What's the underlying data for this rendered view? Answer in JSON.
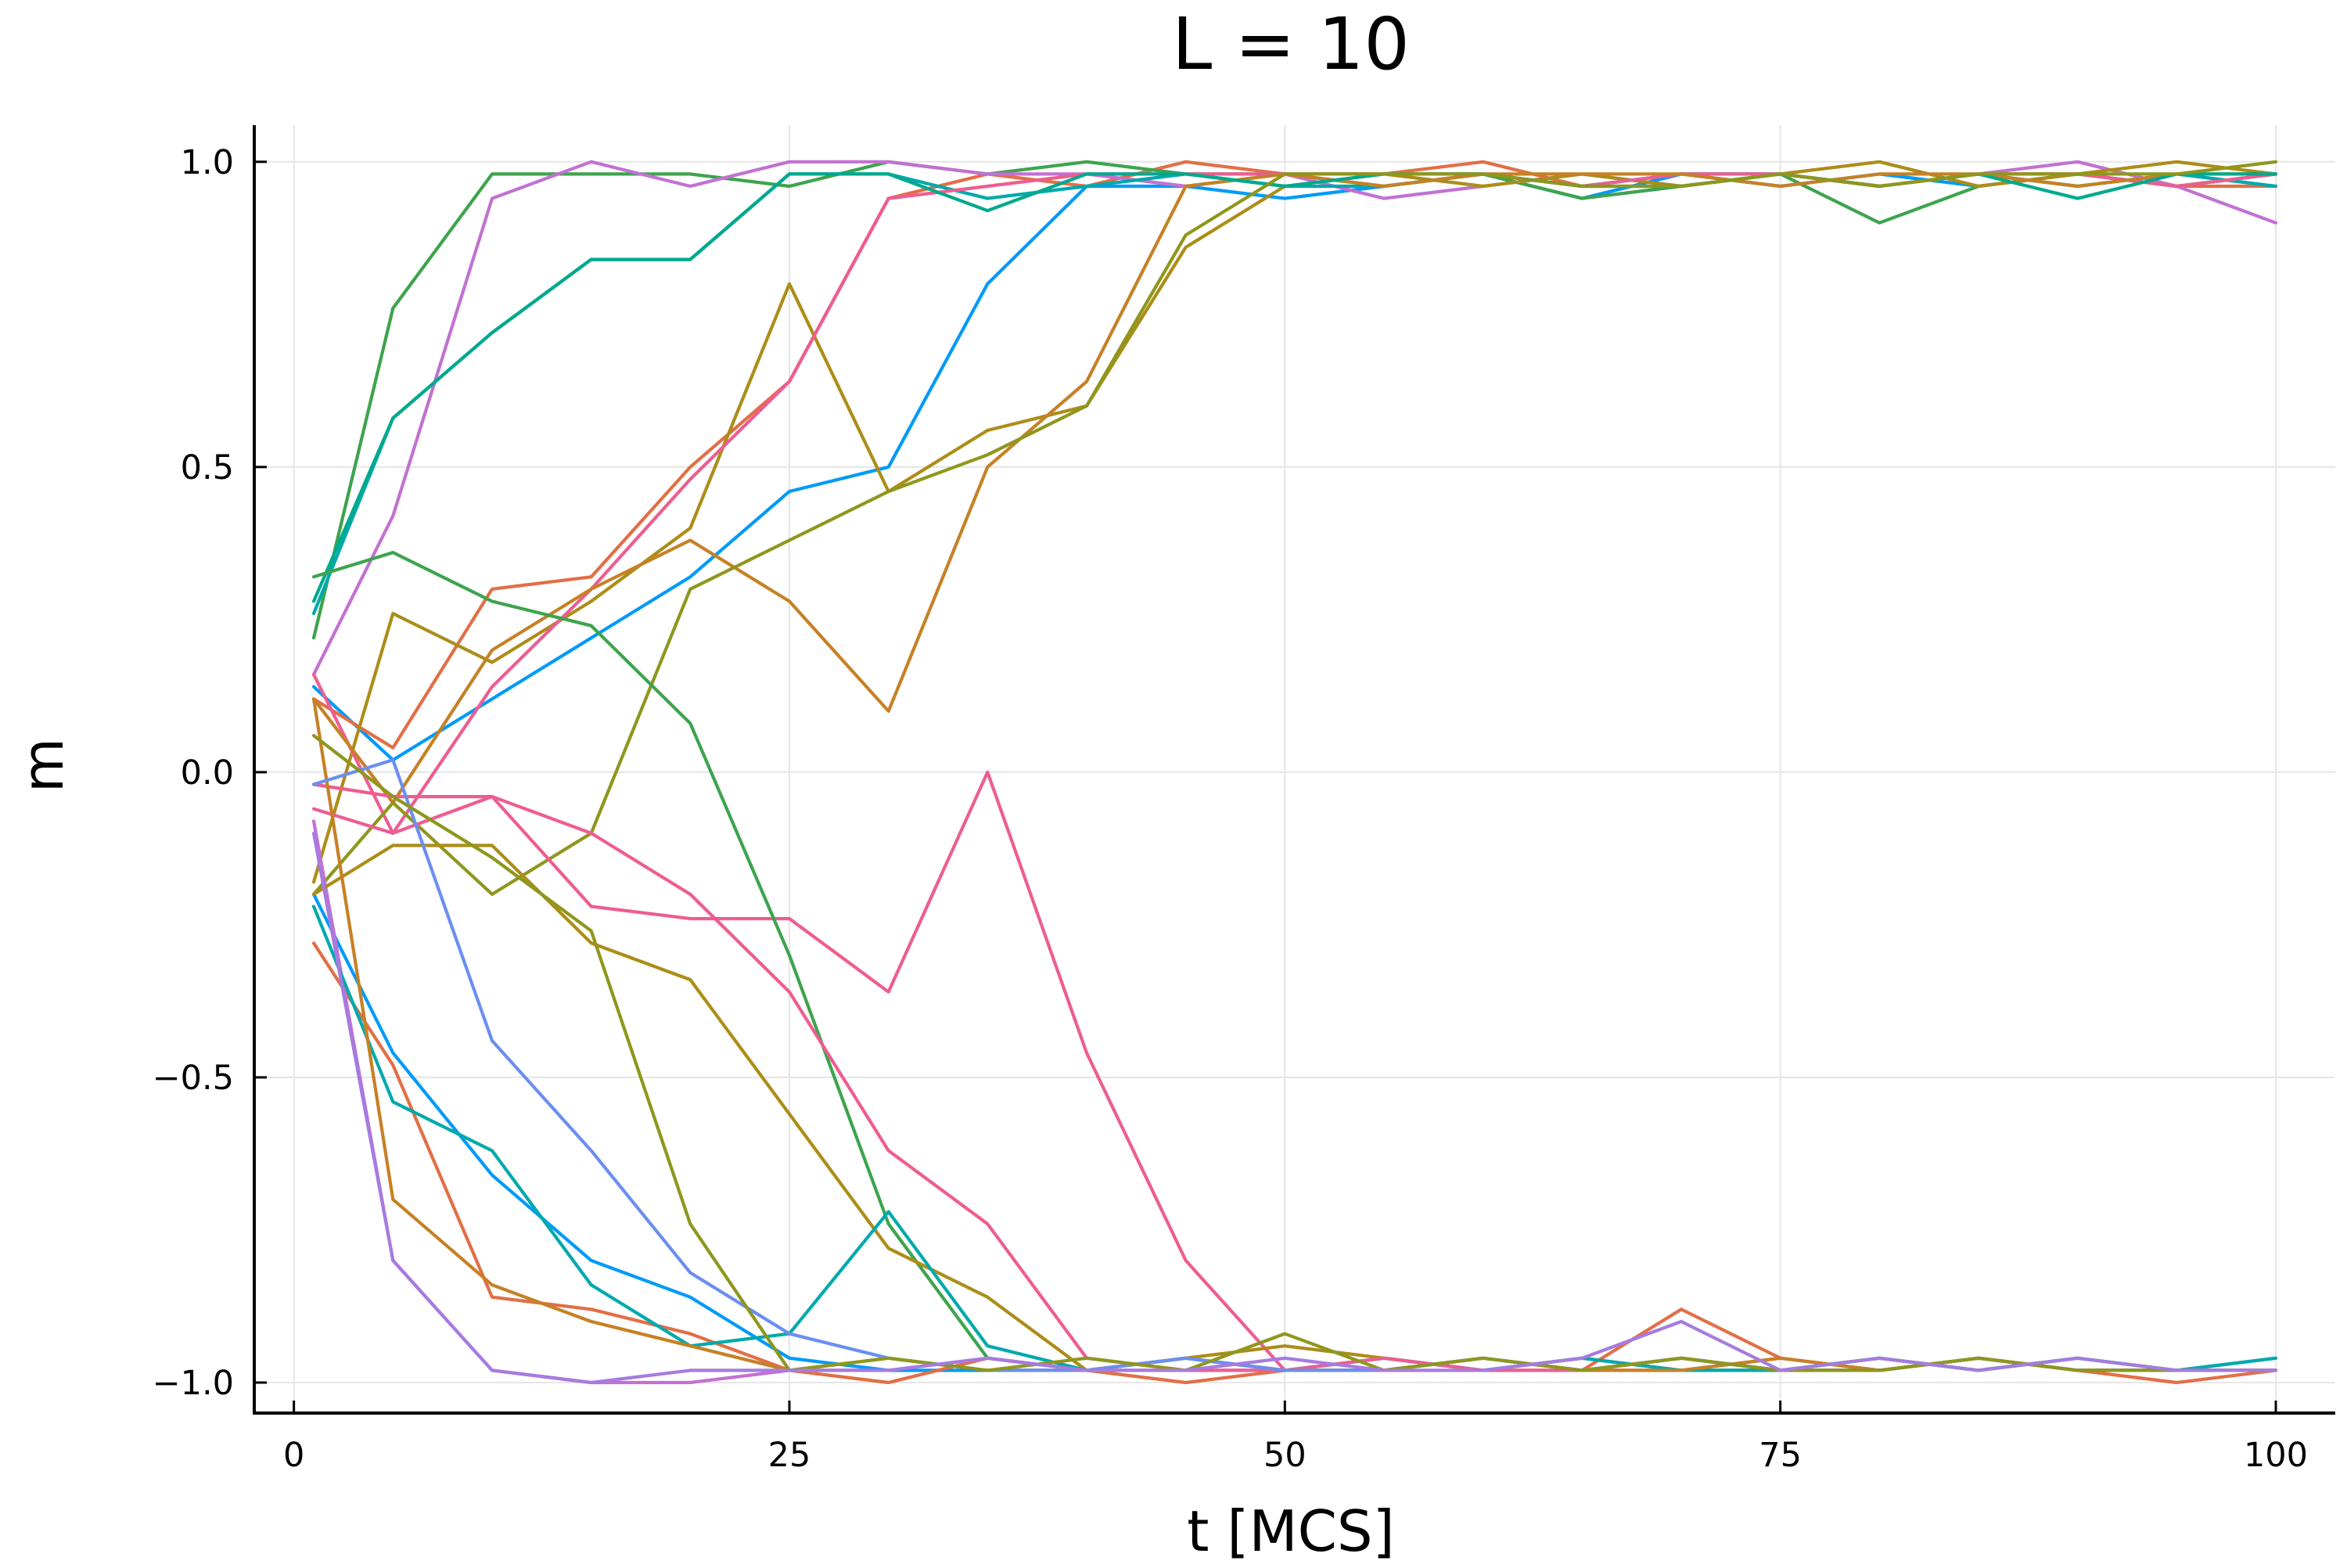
{
  "chart_data": {
    "type": "line",
    "title": "L = 10",
    "xlabel": "t [MCS]",
    "ylabel": "m",
    "xlim": [
      -2,
      103
    ],
    "ylim": [
      -1.05,
      1.06
    ],
    "xticks": [
      0,
      25,
      50,
      75,
      100
    ],
    "yticks": [
      -1.0,
      -0.5,
      0.0,
      0.5,
      1.0
    ],
    "xtick_labels": [
      "0",
      "25",
      "50",
      "75",
      "100"
    ],
    "ytick_labels": [
      "−1.0",
      "−0.5",
      "0.0",
      "0.5",
      "1.0"
    ],
    "grid": true,
    "legend": "none",
    "x": [
      1,
      5,
      10,
      15,
      20,
      25,
      30,
      35,
      40,
      45,
      50,
      55,
      60,
      65,
      70,
      75,
      80,
      85,
      90,
      95,
      100
    ],
    "series": [
      {
        "color": "#009af9",
        "values": [
          0.14,
          0.02,
          0.12,
          0.22,
          0.32,
          0.46,
          0.5,
          0.8,
          0.96,
          0.96,
          0.94,
          0.96,
          0.98,
          0.94,
          0.98,
          0.96,
          0.98,
          0.96,
          0.98,
          0.96,
          0.98
        ]
      },
      {
        "color": "#e26f46",
        "values": [
          0.12,
          0.04,
          0.3,
          0.32,
          0.5,
          0.64,
          0.94,
          0.98,
          0.96,
          1.0,
          0.98,
          0.98,
          1.0,
          0.96,
          0.98,
          0.98,
          0.96,
          0.98,
          0.98,
          0.96,
          0.96
        ]
      },
      {
        "color": "#3da44d",
        "values": [
          0.22,
          0.76,
          0.98,
          0.98,
          0.98,
          0.96,
          1.0,
          0.98,
          1.0,
          0.98,
          0.98,
          0.96,
          0.98,
          0.94,
          0.96,
          0.98,
          0.9,
          0.96,
          0.98,
          0.96,
          0.98
        ]
      },
      {
        "color": "#c271d2",
        "values": [
          0.16,
          0.42,
          0.94,
          1.0,
          0.96,
          1.0,
          1.0,
          0.98,
          0.98,
          0.96,
          0.98,
          0.94,
          0.96,
          0.98,
          0.96,
          0.98,
          0.96,
          0.98,
          1.0,
          0.96,
          0.9
        ]
      },
      {
        "color": "#ac8d18",
        "values": [
          -0.18,
          0.26,
          0.18,
          0.28,
          0.4,
          0.8,
          0.46,
          0.56,
          0.6,
          0.86,
          0.96,
          0.98,
          0.96,
          0.98,
          0.96,
          0.98,
          1.0,
          0.96,
          0.98,
          1.0,
          0.98
        ]
      },
      {
        "color": "#00a9ad",
        "values": [
          0.26,
          0.58,
          0.72,
          0.84,
          0.84,
          0.98,
          0.98,
          0.94,
          0.96,
          0.98,
          0.96,
          0.96,
          0.98,
          0.96,
          0.98,
          0.98,
          0.96,
          0.98,
          0.96,
          0.98,
          0.96
        ]
      },
      {
        "color": "#ed5d92",
        "values": [
          0.16,
          -0.1,
          0.14,
          0.3,
          0.48,
          0.64,
          0.94,
          0.96,
          0.98,
          0.98,
          0.98,
          0.98,
          0.98,
          0.96,
          0.98,
          0.98,
          0.96,
          0.98,
          0.98,
          0.96,
          0.98
        ]
      },
      {
        "color": "#c68125",
        "values": [
          0.12,
          -0.05,
          0.2,
          0.3,
          0.38,
          0.28,
          0.1,
          0.5,
          0.64,
          0.96,
          0.98,
          0.96,
          0.98,
          0.98,
          0.98,
          0.96,
          0.98,
          0.98,
          0.96,
          0.98,
          0.98
        ]
      },
      {
        "color": "#00a98d",
        "values": [
          0.28,
          0.58,
          0.72,
          0.84,
          0.84,
          0.98,
          0.98,
          0.92,
          0.98,
          0.98,
          0.96,
          0.98,
          0.98,
          0.96,
          0.96,
          0.98,
          0.96,
          0.98,
          0.94,
          0.98,
          0.98
        ]
      },
      {
        "color": "#8e971d",
        "values": [
          -0.2,
          -0.05,
          -0.2,
          -0.1,
          0.3,
          0.38,
          0.46,
          0.52,
          0.6,
          0.88,
          0.98,
          0.98,
          0.98,
          0.96,
          0.96,
          0.98,
          0.96,
          0.98,
          0.98,
          0.98,
          1.0
        ]
      },
      {
        "color": "#ed5d92",
        "values": [
          -0.06,
          -0.1,
          -0.04,
          -0.22,
          -0.24,
          -0.24,
          -0.36,
          0.0,
          -0.46,
          -0.8,
          -0.98,
          -0.98,
          -0.96,
          -0.98,
          -0.98,
          -0.96,
          -0.98,
          -0.96,
          -0.98,
          -0.98,
          -0.98
        ]
      },
      {
        "color": "#009af9",
        "values": [
          -0.2,
          -0.46,
          -0.66,
          -0.8,
          -0.86,
          -0.96,
          -0.98,
          -0.98,
          -0.98,
          -0.96,
          -0.98,
          -0.98,
          -0.96,
          -0.98,
          -0.96,
          -0.98,
          -0.98,
          -0.96,
          -0.98,
          -0.98,
          -0.96
        ]
      },
      {
        "color": "#e26f46",
        "values": [
          -0.28,
          -0.48,
          -0.86,
          -0.88,
          -0.92,
          -0.98,
          -1.0,
          -0.96,
          -0.98,
          -1.0,
          -0.98,
          -0.96,
          -0.98,
          -0.98,
          -0.88,
          -0.96,
          -0.98,
          -0.96,
          -0.98,
          -1.0,
          -0.98
        ]
      },
      {
        "color": "#3da44d",
        "values": [
          0.32,
          0.36,
          0.28,
          0.24,
          0.08,
          -0.3,
          -0.74,
          -0.96,
          -0.98,
          -0.96,
          -0.98,
          -0.98,
          -0.96,
          -0.98,
          -0.96,
          -0.98,
          -0.96,
          -0.98,
          -0.96,
          -0.98,
          -0.98
        ]
      },
      {
        "color": "#c271d2",
        "values": [
          -0.08,
          -0.8,
          -0.98,
          -1.0,
          -1.0,
          -0.98,
          -0.98,
          -0.96,
          -0.98,
          -0.98,
          -0.98,
          -0.96,
          -0.98,
          -0.96,
          -0.98,
          -0.98,
          -0.98,
          -0.96,
          -0.98,
          -0.98,
          -0.98
        ]
      },
      {
        "color": "#ac8d18",
        "values": [
          -0.2,
          -0.12,
          -0.12,
          -0.28,
          -0.34,
          -0.56,
          -0.78,
          -0.86,
          -0.98,
          -0.96,
          -0.94,
          -0.96,
          -0.98,
          -0.96,
          -0.98,
          -0.98,
          -0.96,
          -0.98,
          -0.96,
          -0.98,
          -0.98
        ]
      },
      {
        "color": "#00a9ad",
        "values": [
          -0.22,
          -0.54,
          -0.62,
          -0.84,
          -0.94,
          -0.92,
          -0.72,
          -0.94,
          -0.98,
          -0.96,
          -0.98,
          -0.96,
          -0.98,
          -0.96,
          -0.98,
          -0.98,
          -0.96,
          -0.98,
          -0.96,
          -0.98,
          -0.96
        ]
      },
      {
        "color": "#ed5d92",
        "values": [
          -0.02,
          -0.04,
          -0.04,
          -0.1,
          -0.2,
          -0.36,
          -0.62,
          -0.74,
          -0.96,
          -0.98,
          -0.98,
          -0.96,
          -0.98,
          -0.98,
          -0.96,
          -0.98,
          -0.98,
          -0.96,
          -0.98,
          -0.98,
          -0.98
        ]
      },
      {
        "color": "#c68125",
        "values": [
          0.12,
          -0.7,
          -0.84,
          -0.9,
          -0.94,
          -0.98,
          -0.96,
          -0.98,
          -0.98,
          -0.96,
          -0.98,
          -0.98,
          -0.96,
          -0.98,
          -0.98,
          -0.96,
          -0.98,
          -0.96,
          -0.98,
          -0.98,
          -0.98
        ]
      },
      {
        "color": "#6b8ff0",
        "values": [
          -0.02,
          0.02,
          -0.44,
          -0.62,
          -0.82,
          -0.92,
          -0.96,
          -0.98,
          -0.98,
          -0.96,
          -0.98,
          -0.98,
          -0.96,
          -0.98,
          -0.96,
          -0.98,
          -0.98,
          -0.96,
          -0.98,
          -0.98,
          -0.98
        ]
      },
      {
        "color": "#8e971d",
        "values": [
          0.06,
          -0.04,
          -0.14,
          -0.26,
          -0.74,
          -0.98,
          -0.96,
          -0.98,
          -0.96,
          -0.98,
          -0.92,
          -0.98,
          -0.96,
          -0.98,
          -0.96,
          -0.98,
          -0.98,
          -0.96,
          -0.98,
          -0.98,
          -0.98
        ]
      },
      {
        "color": "#a67be0",
        "values": [
          -0.1,
          -0.8,
          -0.98,
          -1.0,
          -0.98,
          -0.98,
          -0.98,
          -0.96,
          -0.98,
          -0.98,
          -0.96,
          -0.98,
          -0.98,
          -0.96,
          -0.9,
          -0.98,
          -0.96,
          -0.98,
          -0.96,
          -0.98,
          -0.98
        ]
      }
    ]
  }
}
